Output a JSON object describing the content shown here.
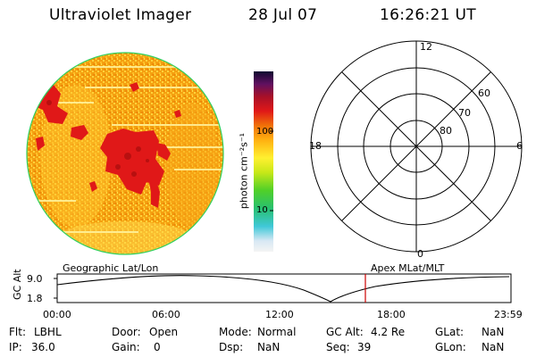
{
  "header": {
    "title": "Ultraviolet Imager",
    "date": "28 Jul 07",
    "time": "16:26:21 UT"
  },
  "colorbar": {
    "label": "photon cm⁻²s⁻¹",
    "ticks": [
      "100",
      "10"
    ]
  },
  "polar_plot": {
    "mlt_labels": [
      "12",
      "18",
      "6",
      "0"
    ],
    "lat_labels": [
      "60",
      "70",
      "80"
    ]
  },
  "orbit": {
    "left_label": "Geographic Lat/Lon",
    "right_label": "Apex MLat/MLT",
    "y_axis_label": "GC Alt",
    "y_ticks": [
      "9.0",
      "1.8"
    ],
    "x_ticks": [
      "00:00",
      "06:00",
      "12:00",
      "18:00",
      "23:59"
    ],
    "current_marker_color": "#cc0000"
  },
  "info": {
    "row1": [
      {
        "label": "Flt:",
        "value": "LBHL"
      },
      {
        "label": "Door:",
        "value": "Open"
      },
      {
        "label": "Mode:",
        "value": "Normal"
      },
      {
        "label": "GC Alt:",
        "value": "4.2 Re"
      },
      {
        "label": "GLat:",
        "value": "NaN"
      }
    ],
    "row2": [
      {
        "label": "IP:",
        "value": "36.0"
      },
      {
        "label": "Gain:",
        "value": "0"
      },
      {
        "label": "Dsp:",
        "value": "NaN"
      },
      {
        "label": "Seq:",
        "value": "39"
      },
      {
        "label": "GLon:",
        "value": "NaN"
      }
    ]
  }
}
